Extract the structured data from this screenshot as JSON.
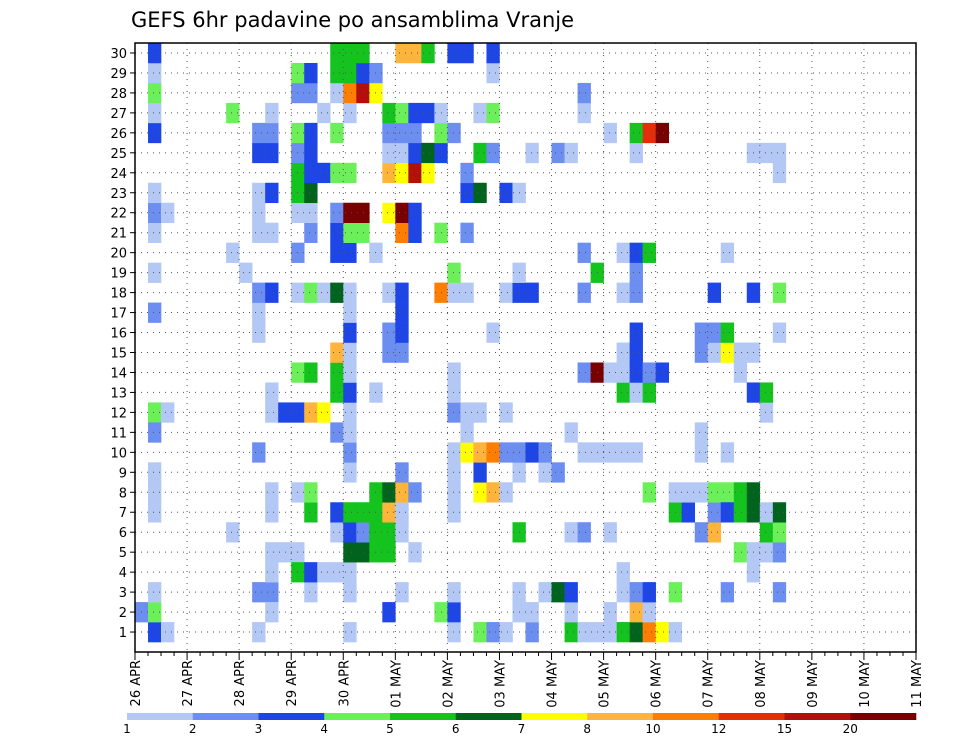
{
  "chart_data": {
    "type": "heatmap",
    "title": "GEFS 6hr padavine po ansamblima Vranje",
    "xlabel": "",
    "ylabel": "",
    "x_ticks": [
      "26 APR",
      "27 APR",
      "28 APR",
      "29 APR",
      "30 APR",
      "01 MAY",
      "02 MAY",
      "03 MAY",
      "04 MAY",
      "05 MAY",
      "06 MAY",
      "07 MAY",
      "08 MAY",
      "09 MAY",
      "10 MAY",
      "11 MAY"
    ],
    "y_ticks": [
      "1",
      "2",
      "3",
      "4",
      "5",
      "6",
      "7",
      "8",
      "9",
      "10",
      "11",
      "12",
      "13",
      "14",
      "15",
      "16",
      "17",
      "18",
      "19",
      "20",
      "21",
      "22",
      "23",
      "24",
      "25",
      "26",
      "27",
      "28",
      "29",
      "30"
    ],
    "x_range": [
      "26 APR",
      "11 MAY"
    ],
    "y_range": [
      0,
      30
    ],
    "grid": true,
    "legend": "bottom colorbar",
    "colorbar": {
      "labels": [
        "1",
        "2",
        "3",
        "4",
        "5",
        "6",
        "7",
        "8",
        "10",
        "12",
        "15",
        "20"
      ],
      "colors": [
        "#b4c8f5",
        "#6b8ef0",
        "#1e46e6",
        "#6cf05a",
        "#14c31e",
        "#00641e",
        "#ffff00",
        "#ffb43c",
        "#ff7d00",
        "#e62d0a",
        "#b40f0a",
        "#780000"
      ]
    },
    "note_cells": "each cell: [time_step_index (6h steps from 26 APR 00Z), member, color_class 1-12]",
    "cells": [
      [
        1,
        1,
        3
      ],
      [
        0,
        2,
        2
      ],
      [
        1,
        2,
        4
      ],
      [
        1,
        3,
        1
      ],
      [
        1,
        8,
        1
      ],
      [
        1,
        7,
        1
      ],
      [
        1,
        9,
        1
      ],
      [
        1,
        12,
        4
      ],
      [
        1,
        11,
        2
      ],
      [
        1,
        17,
        2
      ],
      [
        1,
        19,
        1
      ],
      [
        1,
        21,
        1
      ],
      [
        1,
        22,
        2
      ],
      [
        1,
        23,
        1
      ],
      [
        1,
        26,
        3
      ],
      [
        1,
        27,
        1
      ],
      [
        1,
        28,
        4
      ],
      [
        1,
        29,
        1
      ],
      [
        1,
        30,
        3
      ],
      [
        2,
        1,
        1
      ],
      [
        2,
        12,
        1
      ],
      [
        2,
        22,
        1
      ],
      [
        7,
        20,
        1
      ],
      [
        8,
        19,
        1
      ],
      [
        7,
        27,
        4
      ],
      [
        7,
        6,
        1
      ],
      [
        9,
        1,
        1
      ],
      [
        9,
        3,
        2
      ],
      [
        9,
        10,
        2
      ],
      [
        9,
        16,
        1
      ],
      [
        9,
        17,
        1
      ],
      [
        9,
        18,
        2
      ],
      [
        9,
        21,
        1
      ],
      [
        9,
        22,
        1
      ],
      [
        9,
        23,
        1
      ],
      [
        9,
        25,
        3
      ],
      [
        9,
        26,
        2
      ],
      [
        10,
        3,
        2
      ],
      [
        10,
        18,
        3
      ],
      [
        10,
        23,
        3
      ],
      [
        10,
        25,
        3
      ],
      [
        10,
        26,
        2
      ],
      [
        10,
        27,
        1
      ],
      [
        10,
        2,
        1
      ],
      [
        10,
        12,
        1
      ],
      [
        10,
        13,
        1
      ],
      [
        10,
        4,
        1
      ],
      [
        10,
        5,
        1
      ],
      [
        10,
        7,
        1
      ],
      [
        10,
        8,
        1
      ],
      [
        10,
        21,
        1
      ],
      [
        11,
        12,
        3
      ],
      [
        11,
        5,
        1
      ],
      [
        12,
        5,
        1
      ],
      [
        12,
        8,
        1
      ],
      [
        12,
        12,
        3
      ],
      [
        12,
        14,
        4
      ],
      [
        12,
        18,
        1
      ],
      [
        12,
        20,
        2
      ],
      [
        12,
        22,
        1
      ],
      [
        12,
        23,
        5
      ],
      [
        12,
        24,
        5
      ],
      [
        12,
        25,
        2
      ],
      [
        12,
        26,
        4
      ],
      [
        12,
        28,
        2
      ],
      [
        12,
        4,
        5
      ],
      [
        12,
        29,
        4
      ],
      [
        13,
        3,
        1
      ],
      [
        13,
        4,
        3
      ],
      [
        13,
        7,
        5
      ],
      [
        13,
        8,
        4
      ],
      [
        13,
        12,
        8
      ],
      [
        13,
        14,
        5
      ],
      [
        13,
        18,
        4
      ],
      [
        13,
        21,
        2
      ],
      [
        13,
        22,
        1
      ],
      [
        13,
        23,
        6
      ],
      [
        13,
        24,
        3
      ],
      [
        13,
        25,
        3
      ],
      [
        13,
        26,
        3
      ],
      [
        13,
        28,
        2
      ],
      [
        13,
        29,
        3
      ],
      [
        14,
        4,
        1
      ],
      [
        14,
        12,
        7
      ],
      [
        14,
        18,
        1
      ],
      [
        14,
        24,
        3
      ],
      [
        14,
        27,
        1
      ],
      [
        15,
        4,
        1
      ],
      [
        15,
        6,
        1
      ],
      [
        15,
        7,
        3
      ],
      [
        15,
        11,
        2
      ],
      [
        15,
        13,
        5
      ],
      [
        15,
        14,
        5
      ],
      [
        15,
        15,
        8
      ],
      [
        15,
        18,
        6
      ],
      [
        15,
        20,
        3
      ],
      [
        15,
        21,
        3
      ],
      [
        15,
        22,
        2
      ],
      [
        15,
        24,
        4
      ],
      [
        15,
        26,
        4
      ],
      [
        15,
        28,
        1
      ],
      [
        15,
        29,
        5
      ],
      [
        15,
        30,
        5
      ],
      [
        16,
        1,
        1
      ],
      [
        16,
        3,
        1
      ],
      [
        16,
        4,
        1
      ],
      [
        16,
        5,
        6
      ],
      [
        16,
        6,
        3
      ],
      [
        16,
        7,
        5
      ],
      [
        16,
        9,
        1
      ],
      [
        16,
        10,
        2
      ],
      [
        16,
        11,
        1
      ],
      [
        16,
        12,
        1
      ],
      [
        16,
        13,
        3
      ],
      [
        16,
        14,
        1
      ],
      [
        16,
        15,
        1
      ],
      [
        16,
        16,
        3
      ],
      [
        16,
        17,
        1
      ],
      [
        16,
        18,
        1
      ],
      [
        16,
        20,
        3
      ],
      [
        16,
        21,
        4
      ],
      [
        16,
        22,
        12
      ],
      [
        16,
        24,
        4
      ],
      [
        16,
        27,
        1
      ],
      [
        16,
        28,
        9
      ],
      [
        16,
        29,
        5
      ],
      [
        16,
        30,
        5
      ],
      [
        17,
        5,
        6
      ],
      [
        17,
        6,
        2
      ],
      [
        17,
        7,
        5
      ],
      [
        17,
        21,
        4
      ],
      [
        17,
        22,
        12
      ],
      [
        17,
        28,
        11
      ],
      [
        17,
        29,
        3
      ],
      [
        17,
        30,
        5
      ],
      [
        18,
        5,
        5
      ],
      [
        18,
        6,
        5
      ],
      [
        18,
        7,
        5
      ],
      [
        18,
        8,
        5
      ],
      [
        18,
        13,
        1
      ],
      [
        18,
        20,
        1
      ],
      [
        18,
        28,
        7
      ],
      [
        18,
        29,
        2
      ],
      [
        19,
        5,
        5
      ],
      [
        19,
        6,
        5
      ],
      [
        19,
        7,
        8
      ],
      [
        19,
        8,
        6
      ],
      [
        19,
        15,
        2
      ],
      [
        19,
        16,
        2
      ],
      [
        19,
        18,
        1
      ],
      [
        19,
        24,
        8
      ],
      [
        19,
        25,
        1
      ],
      [
        19,
        26,
        2
      ],
      [
        19,
        27,
        5
      ],
      [
        19,
        2,
        3
      ],
      [
        19,
        22,
        7
      ],
      [
        20,
        3,
        1
      ],
      [
        20,
        6,
        1
      ],
      [
        20,
        7,
        1
      ],
      [
        20,
        8,
        8
      ],
      [
        20,
        9,
        2
      ],
      [
        20,
        15,
        2
      ],
      [
        20,
        16,
        3
      ],
      [
        20,
        17,
        3
      ],
      [
        20,
        18,
        3
      ],
      [
        20,
        21,
        9
      ],
      [
        20,
        22,
        12
      ],
      [
        20,
        24,
        7
      ],
      [
        20,
        25,
        1
      ],
      [
        20,
        26,
        2
      ],
      [
        20,
        27,
        4
      ],
      [
        20,
        30,
        8
      ],
      [
        21,
        5,
        1
      ],
      [
        21,
        8,
        2
      ],
      [
        21,
        21,
        3
      ],
      [
        21,
        22,
        3
      ],
      [
        21,
        24,
        11
      ],
      [
        21,
        25,
        3
      ],
      [
        21,
        26,
        2
      ],
      [
        21,
        27,
        3
      ],
      [
        21,
        30,
        8
      ],
      [
        22,
        24,
        7
      ],
      [
        22,
        25,
        6
      ],
      [
        22,
        27,
        3
      ],
      [
        22,
        30,
        5
      ],
      [
        23,
        18,
        9
      ],
      [
        23,
        21,
        4
      ],
      [
        23,
        25,
        3
      ],
      [
        23,
        26,
        4
      ],
      [
        23,
        27,
        1
      ],
      [
        23,
        2,
        4
      ],
      [
        24,
        1,
        1
      ],
      [
        24,
        2,
        3
      ],
      [
        24,
        3,
        1
      ],
      [
        24,
        7,
        1
      ],
      [
        24,
        8,
        1
      ],
      [
        24,
        9,
        1
      ],
      [
        24,
        10,
        1
      ],
      [
        24,
        12,
        2
      ],
      [
        24,
        13,
        1
      ],
      [
        24,
        14,
        1
      ],
      [
        24,
        18,
        1
      ],
      [
        24,
        19,
        4
      ],
      [
        24,
        26,
        2
      ],
      [
        24,
        30,
        3
      ],
      [
        25,
        10,
        7
      ],
      [
        25,
        11,
        1
      ],
      [
        25,
        12,
        1
      ],
      [
        25,
        18,
        1
      ],
      [
        25,
        21,
        2
      ],
      [
        25,
        23,
        3
      ],
      [
        25,
        24,
        2
      ],
      [
        25,
        30,
        3
      ],
      [
        26,
        1,
        4
      ],
      [
        26,
        8,
        7
      ],
      [
        26,
        9,
        3
      ],
      [
        26,
        10,
        8
      ],
      [
        26,
        12,
        1
      ],
      [
        26,
        23,
        6
      ],
      [
        26,
        25,
        5
      ],
      [
        26,
        27,
        1
      ],
      [
        27,
        1,
        2
      ],
      [
        27,
        8,
        8
      ],
      [
        27,
        10,
        9
      ],
      [
        27,
        16,
        1
      ],
      [
        27,
        25,
        2
      ],
      [
        27,
        27,
        4
      ],
      [
        27,
        29,
        1
      ],
      [
        27,
        30,
        3
      ],
      [
        28,
        1,
        1
      ],
      [
        28,
        8,
        1
      ],
      [
        28,
        10,
        2
      ],
      [
        28,
        12,
        1
      ],
      [
        28,
        18,
        1
      ],
      [
        28,
        23,
        3
      ],
      [
        29,
        3,
        1
      ],
      [
        29,
        2,
        1
      ],
      [
        29,
        6,
        5
      ],
      [
        29,
        9,
        1
      ],
      [
        29,
        10,
        2
      ],
      [
        29,
        18,
        3
      ],
      [
        29,
        19,
        1
      ],
      [
        29,
        23,
        1
      ],
      [
        30,
        1,
        2
      ],
      [
        30,
        2,
        1
      ],
      [
        30,
        10,
        3
      ],
      [
        30,
        18,
        3
      ],
      [
        30,
        25,
        1
      ],
      [
        31,
        3,
        1
      ],
      [
        31,
        9,
        1
      ],
      [
        31,
        10,
        2
      ],
      [
        32,
        3,
        6
      ],
      [
        32,
        25,
        2
      ],
      [
        32,
        9,
        2
      ],
      [
        33,
        1,
        5
      ],
      [
        33,
        2,
        1
      ],
      [
        33,
        3,
        3
      ],
      [
        33,
        11,
        1
      ],
      [
        33,
        25,
        1
      ],
      [
        33,
        6,
        1
      ],
      [
        34,
        1,
        1
      ],
      [
        34,
        6,
        2
      ],
      [
        34,
        10,
        1
      ],
      [
        34,
        14,
        2
      ],
      [
        34,
        18,
        2
      ],
      [
        34,
        20,
        2
      ],
      [
        34,
        27,
        1
      ],
      [
        34,
        28,
        2
      ],
      [
        35,
        1,
        1
      ],
      [
        35,
        10,
        1
      ],
      [
        35,
        14,
        12
      ],
      [
        35,
        19,
        5
      ],
      [
        36,
        1,
        1
      ],
      [
        36,
        2,
        1
      ],
      [
        36,
        10,
        1
      ],
      [
        36,
        14,
        1
      ],
      [
        36,
        26,
        1
      ],
      [
        36,
        6,
        1
      ],
      [
        37,
        1,
        5
      ],
      [
        37,
        3,
        1
      ],
      [
        37,
        4,
        1
      ],
      [
        37,
        10,
        1
      ],
      [
        37,
        13,
        5
      ],
      [
        37,
        14,
        1
      ],
      [
        37,
        15,
        1
      ],
      [
        37,
        18,
        1
      ],
      [
        37,
        20,
        1
      ],
      [
        38,
        1,
        6
      ],
      [
        38,
        2,
        8
      ],
      [
        38,
        3,
        2
      ],
      [
        38,
        10,
        1
      ],
      [
        38,
        13,
        1
      ],
      [
        38,
        14,
        3
      ],
      [
        38,
        15,
        3
      ],
      [
        38,
        16,
        3
      ],
      [
        38,
        18,
        2
      ],
      [
        38,
        19,
        2
      ],
      [
        38,
        20,
        3
      ],
      [
        38,
        25,
        1
      ],
      [
        38,
        26,
        5
      ],
      [
        39,
        1,
        9
      ],
      [
        39,
        2,
        1
      ],
      [
        39,
        3,
        3
      ],
      [
        39,
        8,
        4
      ],
      [
        39,
        13,
        5
      ],
      [
        39,
        14,
        2
      ],
      [
        39,
        20,
        5
      ],
      [
        39,
        26,
        10
      ],
      [
        40,
        1,
        7
      ],
      [
        40,
        26,
        12
      ],
      [
        40,
        14,
        3
      ],
      [
        41,
        1,
        1
      ],
      [
        41,
        3,
        4
      ],
      [
        41,
        7,
        5
      ],
      [
        41,
        8,
        1
      ],
      [
        42,
        7,
        3
      ],
      [
        42,
        8,
        1
      ],
      [
        43,
        8,
        1
      ],
      [
        43,
        10,
        1
      ],
      [
        43,
        6,
        2
      ],
      [
        43,
        11,
        1
      ],
      [
        43,
        15,
        2
      ],
      [
        43,
        16,
        2
      ],
      [
        44,
        6,
        8
      ],
      [
        44,
        7,
        2
      ],
      [
        44,
        8,
        4
      ],
      [
        44,
        15,
        1
      ],
      [
        44,
        16,
        2
      ],
      [
        44,
        18,
        3
      ],
      [
        45,
        8,
        4
      ],
      [
        45,
        7,
        3
      ],
      [
        45,
        3,
        2
      ],
      [
        45,
        10,
        1
      ],
      [
        45,
        15,
        7
      ],
      [
        45,
        16,
        5
      ],
      [
        45,
        20,
        1
      ],
      [
        46,
        5,
        4
      ],
      [
        46,
        7,
        5
      ],
      [
        46,
        8,
        5
      ],
      [
        46,
        15,
        1
      ],
      [
        46,
        14,
        1
      ],
      [
        47,
        4,
        1
      ],
      [
        47,
        5,
        1
      ],
      [
        47,
        8,
        6
      ],
      [
        47,
        7,
        6
      ],
      [
        47,
        13,
        3
      ],
      [
        47,
        18,
        3
      ],
      [
        47,
        25,
        1
      ],
      [
        47,
        15,
        1
      ],
      [
        48,
        5,
        1
      ],
      [
        48,
        6,
        5
      ],
      [
        48,
        7,
        1
      ],
      [
        48,
        12,
        1
      ],
      [
        48,
        25,
        1
      ],
      [
        48,
        13,
        5
      ],
      [
        49,
        5,
        2
      ],
      [
        49,
        6,
        4
      ],
      [
        49,
        7,
        6
      ],
      [
        49,
        3,
        2
      ],
      [
        49,
        16,
        1
      ],
      [
        49,
        24,
        1
      ],
      [
        49,
        25,
        1
      ],
      [
        49,
        18,
        4
      ]
    ]
  }
}
